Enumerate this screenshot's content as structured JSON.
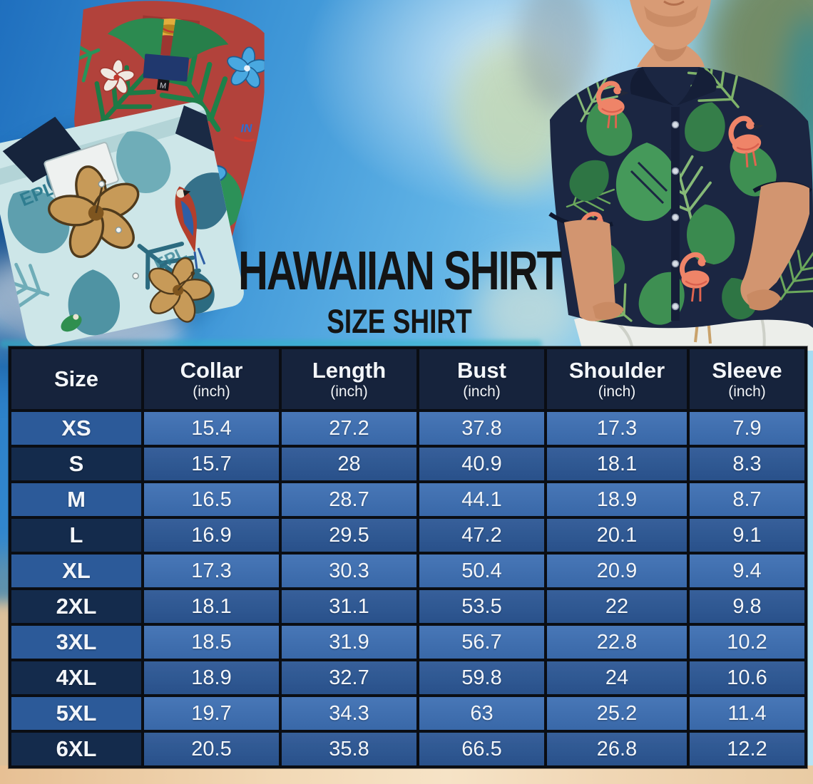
{
  "page": {
    "title": "HAWAIIAN SHIRT",
    "subtitle": "SIZE SHIRT"
  },
  "size_table": {
    "columns": [
      {
        "label": "Size",
        "unit": ""
      },
      {
        "label": "Collar",
        "unit": "(inch)"
      },
      {
        "label": "Length",
        "unit": "(inch)"
      },
      {
        "label": "Bust",
        "unit": "(inch)"
      },
      {
        "label": "Shoulder",
        "unit": "(inch)"
      },
      {
        "label": "Sleeve",
        "unit": "(inch)"
      }
    ],
    "rows": [
      {
        "size": "XS",
        "values": [
          "15.4",
          "27.2",
          "37.8",
          "17.3",
          "7.9"
        ]
      },
      {
        "size": "S",
        "values": [
          "15.7",
          "28",
          "40.9",
          "18.1",
          "8.3"
        ]
      },
      {
        "size": "M",
        "values": [
          "16.5",
          "28.7",
          "44.1",
          "18.9",
          "8.7"
        ]
      },
      {
        "size": "L",
        "values": [
          "16.9",
          "29.5",
          "47.2",
          "20.1",
          "9.1"
        ]
      },
      {
        "size": "XL",
        "values": [
          "17.3",
          "30.3",
          "50.4",
          "20.9",
          "9.4"
        ]
      },
      {
        "size": "2XL",
        "values": [
          "18.1",
          "31.1",
          "53.5",
          "22",
          "9.8"
        ]
      },
      {
        "size": "3XL",
        "values": [
          "18.5",
          "31.9",
          "56.7",
          "22.8",
          "10.2"
        ]
      },
      {
        "size": "4XL",
        "values": [
          "18.9",
          "32.7",
          "59.8",
          "24",
          "10.6"
        ]
      },
      {
        "size": "5XL",
        "values": [
          "19.7",
          "34.3",
          "63",
          "25.2",
          "11.4"
        ]
      },
      {
        "size": "6XL",
        "values": [
          "20.5",
          "35.8",
          "66.5",
          "26.8",
          "12.2"
        ]
      }
    ]
  },
  "images": {
    "folded_shirts": {
      "print_text": "EPL",
      "print_text_2": "EPL",
      "size_tag_label": "M",
      "logo_text": "IN"
    }
  },
  "colors": {
    "header_bg": "#16233c",
    "row_label_odd": "#2c5a99",
    "row_value_odd": "#3d6fb3",
    "row_label_even": "#142b4c",
    "row_value_even": "#2c5795",
    "table_border": "#0a0d13",
    "table_text": "#f3f6fa",
    "title_text": "#141414",
    "sand": "#ecc9a0",
    "sky_deep": "#1f6fbe",
    "sky_light": "#b7e4f6"
  },
  "chart_data": {
    "type": "table",
    "title": "HAWAIIAN SHIRT",
    "subtitle": "SIZE SHIRT",
    "columns": [
      "Size",
      "Collar (inch)",
      "Length (inch)",
      "Bust (inch)",
      "Shoulder (inch)",
      "Sleeve (inch)"
    ],
    "rows": [
      [
        "XS",
        15.4,
        27.2,
        37.8,
        17.3,
        7.9
      ],
      [
        "S",
        15.7,
        28,
        40.9,
        18.1,
        8.3
      ],
      [
        "M",
        16.5,
        28.7,
        44.1,
        18.9,
        8.7
      ],
      [
        "L",
        16.9,
        29.5,
        47.2,
        20.1,
        9.1
      ],
      [
        "XL",
        17.3,
        30.3,
        50.4,
        20.9,
        9.4
      ],
      [
        "2XL",
        18.1,
        31.1,
        53.5,
        22,
        9.8
      ],
      [
        "3XL",
        18.5,
        31.9,
        56.7,
        22.8,
        10.2
      ],
      [
        "4XL",
        18.9,
        32.7,
        59.8,
        24,
        10.6
      ],
      [
        "5XL",
        19.7,
        34.3,
        63,
        25.2,
        11.4
      ],
      [
        "6XL",
        20.5,
        35.8,
        66.5,
        26.8,
        12.2
      ]
    ]
  }
}
